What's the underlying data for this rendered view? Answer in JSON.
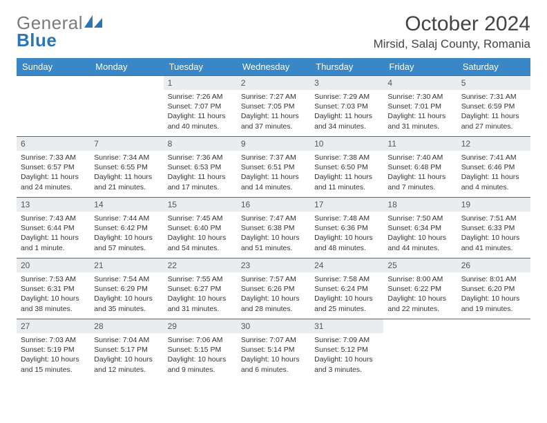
{
  "brand": {
    "text1": "General",
    "text2": "Blue"
  },
  "title": "October 2024",
  "location": "Mirsid, Salaj County, Romania",
  "colors": {
    "header_bg": "#3a87c8",
    "header_text": "#ffffff",
    "cell_border": "#2a74b8",
    "daynum_bg": "#e9edf0",
    "logo_gray": "#7a7a7a",
    "logo_blue": "#2a74b8",
    "body_text": "#333333",
    "page_bg": "#ffffff"
  },
  "weekdays": [
    "Sunday",
    "Monday",
    "Tuesday",
    "Wednesday",
    "Thursday",
    "Friday",
    "Saturday"
  ],
  "leading_blanks": 2,
  "days": [
    {
      "n": 1,
      "sunrise": "7:26 AM",
      "sunset": "7:07 PM",
      "daylight": "11 hours and 40 minutes."
    },
    {
      "n": 2,
      "sunrise": "7:27 AM",
      "sunset": "7:05 PM",
      "daylight": "11 hours and 37 minutes."
    },
    {
      "n": 3,
      "sunrise": "7:29 AM",
      "sunset": "7:03 PM",
      "daylight": "11 hours and 34 minutes."
    },
    {
      "n": 4,
      "sunrise": "7:30 AM",
      "sunset": "7:01 PM",
      "daylight": "11 hours and 31 minutes."
    },
    {
      "n": 5,
      "sunrise": "7:31 AM",
      "sunset": "6:59 PM",
      "daylight": "11 hours and 27 minutes."
    },
    {
      "n": 6,
      "sunrise": "7:33 AM",
      "sunset": "6:57 PM",
      "daylight": "11 hours and 24 minutes."
    },
    {
      "n": 7,
      "sunrise": "7:34 AM",
      "sunset": "6:55 PM",
      "daylight": "11 hours and 21 minutes."
    },
    {
      "n": 8,
      "sunrise": "7:36 AM",
      "sunset": "6:53 PM",
      "daylight": "11 hours and 17 minutes."
    },
    {
      "n": 9,
      "sunrise": "7:37 AM",
      "sunset": "6:51 PM",
      "daylight": "11 hours and 14 minutes."
    },
    {
      "n": 10,
      "sunrise": "7:38 AM",
      "sunset": "6:50 PM",
      "daylight": "11 hours and 11 minutes."
    },
    {
      "n": 11,
      "sunrise": "7:40 AM",
      "sunset": "6:48 PM",
      "daylight": "11 hours and 7 minutes."
    },
    {
      "n": 12,
      "sunrise": "7:41 AM",
      "sunset": "6:46 PM",
      "daylight": "11 hours and 4 minutes."
    },
    {
      "n": 13,
      "sunrise": "7:43 AM",
      "sunset": "6:44 PM",
      "daylight": "11 hours and 1 minute."
    },
    {
      "n": 14,
      "sunrise": "7:44 AM",
      "sunset": "6:42 PM",
      "daylight": "10 hours and 57 minutes."
    },
    {
      "n": 15,
      "sunrise": "7:45 AM",
      "sunset": "6:40 PM",
      "daylight": "10 hours and 54 minutes."
    },
    {
      "n": 16,
      "sunrise": "7:47 AM",
      "sunset": "6:38 PM",
      "daylight": "10 hours and 51 minutes."
    },
    {
      "n": 17,
      "sunrise": "7:48 AM",
      "sunset": "6:36 PM",
      "daylight": "10 hours and 48 minutes."
    },
    {
      "n": 18,
      "sunrise": "7:50 AM",
      "sunset": "6:34 PM",
      "daylight": "10 hours and 44 minutes."
    },
    {
      "n": 19,
      "sunrise": "7:51 AM",
      "sunset": "6:33 PM",
      "daylight": "10 hours and 41 minutes."
    },
    {
      "n": 20,
      "sunrise": "7:53 AM",
      "sunset": "6:31 PM",
      "daylight": "10 hours and 38 minutes."
    },
    {
      "n": 21,
      "sunrise": "7:54 AM",
      "sunset": "6:29 PM",
      "daylight": "10 hours and 35 minutes."
    },
    {
      "n": 22,
      "sunrise": "7:55 AM",
      "sunset": "6:27 PM",
      "daylight": "10 hours and 31 minutes."
    },
    {
      "n": 23,
      "sunrise": "7:57 AM",
      "sunset": "6:26 PM",
      "daylight": "10 hours and 28 minutes."
    },
    {
      "n": 24,
      "sunrise": "7:58 AM",
      "sunset": "6:24 PM",
      "daylight": "10 hours and 25 minutes."
    },
    {
      "n": 25,
      "sunrise": "8:00 AM",
      "sunset": "6:22 PM",
      "daylight": "10 hours and 22 minutes."
    },
    {
      "n": 26,
      "sunrise": "8:01 AM",
      "sunset": "6:20 PM",
      "daylight": "10 hours and 19 minutes."
    },
    {
      "n": 27,
      "sunrise": "7:03 AM",
      "sunset": "5:19 PM",
      "daylight": "10 hours and 15 minutes."
    },
    {
      "n": 28,
      "sunrise": "7:04 AM",
      "sunset": "5:17 PM",
      "daylight": "10 hours and 12 minutes."
    },
    {
      "n": 29,
      "sunrise": "7:06 AM",
      "sunset": "5:15 PM",
      "daylight": "10 hours and 9 minutes."
    },
    {
      "n": 30,
      "sunrise": "7:07 AM",
      "sunset": "5:14 PM",
      "daylight": "10 hours and 6 minutes."
    },
    {
      "n": 31,
      "sunrise": "7:09 AM",
      "sunset": "5:12 PM",
      "daylight": "10 hours and 3 minutes."
    }
  ],
  "labels": {
    "sunrise": "Sunrise: ",
    "sunset": "Sunset: ",
    "daylight": "Daylight: "
  }
}
